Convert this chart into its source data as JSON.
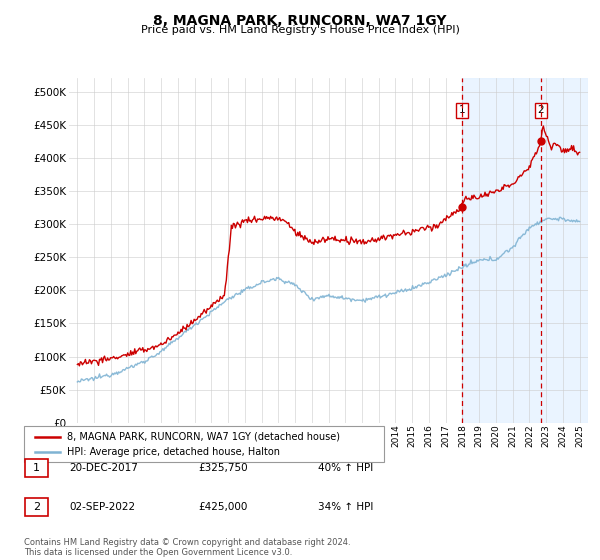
{
  "title": "8, MAGNA PARK, RUNCORN, WA7 1GY",
  "subtitle": "Price paid vs. HM Land Registry's House Price Index (HPI)",
  "ylim": [
    0,
    520000
  ],
  "yticks": [
    0,
    50000,
    100000,
    150000,
    200000,
    250000,
    300000,
    350000,
    400000,
    450000,
    500000
  ],
  "ytick_labels": [
    "£0",
    "£50K",
    "£100K",
    "£150K",
    "£200K",
    "£250K",
    "£300K",
    "£350K",
    "£400K",
    "£450K",
    "£500K"
  ],
  "red_color": "#cc0000",
  "blue_color": "#7fb3d3",
  "grid_color": "#cccccc",
  "marker1_x": 2017.96,
  "marker1_price": 325750,
  "marker1_label": "1",
  "marker1_date": "20-DEC-2017",
  "marker1_hpi": "40% ↑ HPI",
  "marker2_x": 2022.67,
  "marker2_price": 425000,
  "marker2_label": "2",
  "marker2_date": "02-SEP-2022",
  "marker2_hpi": "34% ↑ HPI",
  "legend_red": "8, MAGNA PARK, RUNCORN, WA7 1GY (detached house)",
  "legend_blue": "HPI: Average price, detached house, Halton",
  "footnote": "Contains HM Land Registry data © Crown copyright and database right 2024.\nThis data is licensed under the Open Government Licence v3.0.",
  "xstart": 1994.5,
  "xend": 2025.5
}
